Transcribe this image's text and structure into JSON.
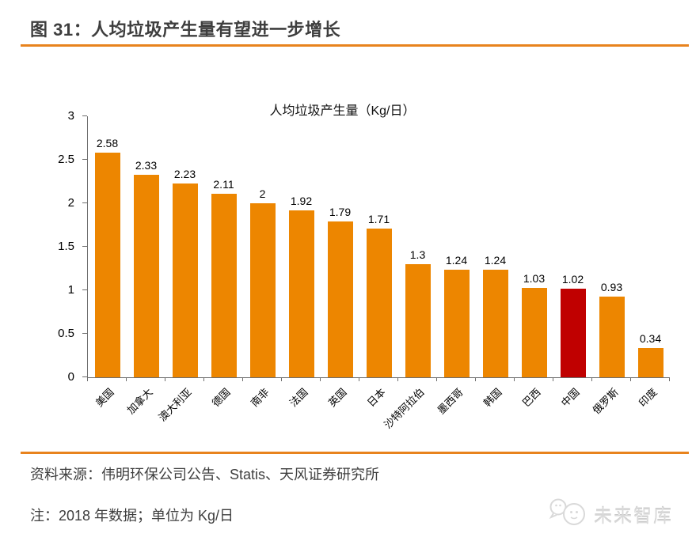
{
  "header": {
    "title": "图 31：人均垃圾产生量有望进一步增长"
  },
  "chart_data": {
    "type": "bar",
    "title": "人均垃圾产生量（Kg/日）",
    "categories": [
      "美国",
      "加拿大",
      "澳大利亚",
      "德国",
      "南非",
      "法国",
      "英国",
      "日本",
      "沙特阿拉伯",
      "墨西哥",
      "韩国",
      "巴西",
      "中国",
      "俄罗斯",
      "印度"
    ],
    "values": [
      2.58,
      2.33,
      2.23,
      2.11,
      2,
      1.92,
      1.79,
      1.71,
      1.3,
      1.24,
      1.24,
      1.03,
      1.02,
      0.93,
      0.34
    ],
    "highlight_category": "中国",
    "bar_color": "#ED8600",
    "highlight_color": "#C00000",
    "xlabel": "",
    "ylabel": "",
    "ylim": [
      0,
      3
    ],
    "yticks": [
      0,
      0.5,
      1,
      1.5,
      2,
      2.5,
      3
    ],
    "grid": false,
    "legend": null,
    "data_labels": true
  },
  "footer": {
    "source": "资料来源：伟明环保公司公告、Statis、天风证券研究所",
    "note": "注：2018 年数据；单位为 Kg/日",
    "watermark": "未来智库"
  },
  "colors": {
    "bar_orange": "#ED8600",
    "highlight_red": "#C00000",
    "rule_orange": "#E8831D",
    "axis_gray": "#6E6E6E",
    "text_dark": "#3E3E3E",
    "watermark_gray": "#D9D9D9"
  }
}
